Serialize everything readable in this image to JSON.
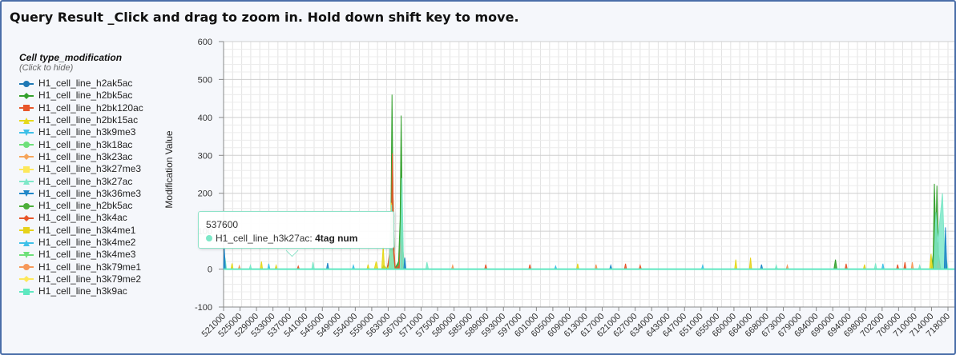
{
  "header": {
    "title": "Query Result _Click and drag to zoom in. Hold down shift key to move."
  },
  "legend": {
    "title": "Cell type_modification",
    "subtitle": "(Click to hide)",
    "items": [
      {
        "label": "H1_cell_line_h2ak5ac",
        "color": "#1f78b4",
        "marker": "circle"
      },
      {
        "label": "H1_cell_line_h2bk5ac",
        "color": "#33a02c",
        "marker": "diamond"
      },
      {
        "label": "H1_cell_line_h2bk120ac",
        "color": "#e8562a",
        "marker": "square"
      },
      {
        "label": "H1_cell_line_h2bk15ac",
        "color": "#e6d91a",
        "marker": "triangle"
      },
      {
        "label": "H1_cell_line_h3k9me3",
        "color": "#3fc0e8",
        "marker": "triangle-down"
      },
      {
        "label": "H1_cell_line_h3k18ac",
        "color": "#6ee07a",
        "marker": "circle"
      },
      {
        "label": "H1_cell_line_h3k23ac",
        "color": "#f6a55a",
        "marker": "diamond"
      },
      {
        "label": "H1_cell_line_h3k27me3",
        "color": "#fde85a",
        "marker": "square"
      },
      {
        "label": "H1_cell_line_h3k27ac",
        "color": "#7ee8c8",
        "marker": "triangle"
      },
      {
        "label": "H1_cell_line_h3k36me3",
        "color": "#1f86c8",
        "marker": "triangle-down"
      },
      {
        "label": "H1_cell_line_h2bk5ac",
        "color": "#4caf3a",
        "marker": "circle"
      },
      {
        "label": "H1_cell_line_h3k4ac",
        "color": "#e8562a",
        "marker": "diamond"
      },
      {
        "label": "H1_cell_line_h3k4me1",
        "color": "#e6d21a",
        "marker": "square"
      },
      {
        "label": "H1_cell_line_h3k4me2",
        "color": "#3fc0e8",
        "marker": "triangle"
      },
      {
        "label": "H1_cell_line_h3k4me3",
        "color": "#6ee07a",
        "marker": "triangle-down"
      },
      {
        "label": "H1_cell_line_h3k79me1",
        "color": "#f6985a",
        "marker": "circle"
      },
      {
        "label": "H1_cell_line_h3k79me2",
        "color": "#fde85a",
        "marker": "diamond"
      },
      {
        "label": "H1_cell_line_h3k9ac",
        "color": "#5ee8c0",
        "marker": "square"
      }
    ]
  },
  "tooltip": {
    "x_value": "537600",
    "series": "H1_cell_line_h3k27ac:",
    "value": "4tag num",
    "color": "#7ee8c8"
  },
  "chart_data": {
    "type": "area",
    "title": "Query Result _Click and drag to zoom in. Hold down shift key to move.",
    "ylabel": "Modification Value",
    "xlabel": "",
    "ylim": [
      -100,
      600
    ],
    "yticks": [
      -100,
      0,
      100,
      200,
      300,
      400,
      500,
      600
    ],
    "xlim": [
      521000,
      718000
    ],
    "xtick_labels": [
      "521000",
      "525000",
      "529000",
      "533000",
      "537000",
      "541000",
      "545000",
      "549000",
      "554000",
      "559000",
      "563000",
      "567000",
      "571000",
      "575000",
      "580000",
      "585000",
      "589000",
      "593000",
      "597000",
      "601000",
      "605000",
      "609000",
      "613000",
      "617000",
      "621000",
      "627000",
      "634000",
      "643000",
      "647000",
      "651000",
      "655000",
      "660000",
      "664000",
      "668000",
      "673000",
      "679000",
      "684000",
      "690000",
      "694000",
      "698000",
      "702000",
      "706000",
      "710000",
      "714000",
      "718000"
    ],
    "grid": true,
    "legend_position": "left",
    "series": [
      {
        "name": "H1_cell_line_h2bk5ac",
        "color": "#33a02c",
        "points": [
          [
            564000,
            0
          ],
          [
            564600,
            10
          ],
          [
            565400,
            0
          ],
          [
            566100,
            30
          ],
          [
            566500,
            120
          ],
          [
            566800,
            460
          ],
          [
            567100,
            200
          ],
          [
            567500,
            0
          ],
          [
            568600,
            20
          ],
          [
            569000,
            130
          ],
          [
            569300,
            405
          ],
          [
            569700,
            60
          ],
          [
            570200,
            0
          ],
          [
            687000,
            0
          ],
          [
            687400,
            25
          ],
          [
            687800,
            0
          ],
          [
            713500,
            0
          ],
          [
            714000,
            40
          ],
          [
            714300,
            225
          ],
          [
            714700,
            80
          ],
          [
            715000,
            220
          ],
          [
            715400,
            40
          ],
          [
            716000,
            0
          ]
        ]
      },
      {
        "name": "H1_cell_line_h2bk120ac",
        "color": "#e8562a",
        "points": [
          [
            565500,
            0
          ],
          [
            566100,
            40
          ],
          [
            566600,
            110
          ],
          [
            566900,
            305
          ],
          [
            567300,
            60
          ],
          [
            567700,
            0
          ],
          [
            568800,
            10
          ],
          [
            569200,
            80
          ],
          [
            569600,
            0
          ],
          [
            573000,
            0
          ],
          [
            604000,
            0
          ],
          [
            604300,
            12
          ],
          [
            604600,
            0
          ],
          [
            630000,
            0
          ],
          [
            630300,
            14
          ],
          [
            630600,
            0
          ],
          [
            706000,
            0
          ],
          [
            706300,
            18
          ],
          [
            706600,
            0
          ],
          [
            715000,
            0
          ],
          [
            715400,
            22
          ],
          [
            715800,
            0
          ]
        ]
      },
      {
        "name": "H1_cell_line_h2bk15ac",
        "color": "#e6d91a",
        "points": [
          [
            523000,
            0
          ],
          [
            523300,
            15
          ],
          [
            523600,
            0
          ],
          [
            531000,
            0
          ],
          [
            531300,
            20
          ],
          [
            531600,
            0
          ],
          [
            562000,
            0
          ],
          [
            562500,
            20
          ],
          [
            563000,
            0
          ],
          [
            564000,
            0
          ],
          [
            564400,
            60
          ],
          [
            564700,
            10
          ],
          [
            565300,
            0
          ],
          [
            566200,
            10
          ],
          [
            566600,
            175
          ],
          [
            566900,
            40
          ],
          [
            567400,
            0
          ],
          [
            660000,
            0
          ],
          [
            660300,
            25
          ],
          [
            660600,
            0
          ],
          [
            713000,
            0
          ],
          [
            713400,
            40
          ],
          [
            713800,
            0
          ]
        ]
      },
      {
        "name": "H1_cell_line_h3k27ac",
        "color": "#7ee8c8",
        "points": [
          [
            521000,
            0
          ],
          [
            521400,
            30
          ],
          [
            521800,
            0
          ],
          [
            528000,
            0
          ],
          [
            528300,
            10
          ],
          [
            528600,
            0
          ],
          [
            545000,
            0
          ],
          [
            545300,
            18
          ],
          [
            545700,
            0
          ],
          [
            566000,
            0
          ],
          [
            566700,
            170
          ],
          [
            567000,
            40
          ],
          [
            567400,
            0
          ],
          [
            569000,
            0
          ],
          [
            569500,
            240
          ],
          [
            569900,
            30
          ],
          [
            570300,
            0
          ],
          [
            576000,
            0
          ],
          [
            576300,
            18
          ],
          [
            576700,
            0
          ],
          [
            671000,
            0
          ],
          [
            671300,
            10
          ],
          [
            671600,
            0
          ],
          [
            698000,
            0
          ],
          [
            698300,
            15
          ],
          [
            698600,
            0
          ],
          [
            710000,
            0
          ],
          [
            710300,
            10
          ],
          [
            710600,
            0
          ],
          [
            714200,
            0
          ],
          [
            714700,
            150
          ],
          [
            715200,
            70
          ],
          [
            716500,
            200
          ],
          [
            717000,
            60
          ],
          [
            718000,
            0
          ]
        ]
      },
      {
        "name": "H1_cell_line_h3k36me3",
        "color": "#1f86c8",
        "points": [
          [
            521000,
            0
          ],
          [
            521200,
            55
          ],
          [
            521500,
            0
          ],
          [
            549000,
            0
          ],
          [
            549300,
            16
          ],
          [
            549600,
            0
          ],
          [
            570000,
            0
          ],
          [
            570300,
            30
          ],
          [
            570600,
            0
          ],
          [
            626000,
            0
          ],
          [
            626300,
            10
          ],
          [
            626600,
            0
          ],
          [
            667000,
            0
          ],
          [
            667300,
            12
          ],
          [
            667600,
            0
          ],
          [
            717000,
            0
          ],
          [
            717300,
            110
          ],
          [
            717700,
            0
          ]
        ]
      },
      {
        "name": "H1_cell_line_h3k4ac",
        "color": "#e8562a",
        "points": [
          [
            541000,
            0
          ],
          [
            541300,
            8
          ],
          [
            541600,
            0
          ],
          [
            592000,
            0
          ],
          [
            592300,
            12
          ],
          [
            592600,
            0
          ],
          [
            634000,
            0
          ],
          [
            634300,
            10
          ],
          [
            634600,
            0
          ],
          [
            690000,
            0
          ],
          [
            690300,
            14
          ],
          [
            690600,
            0
          ],
          [
            704000,
            0
          ],
          [
            704300,
            12
          ],
          [
            704600,
            0
          ]
        ]
      },
      {
        "name": "H1_cell_line_h3k4me1",
        "color": "#e6d21a",
        "points": [
          [
            535000,
            0
          ],
          [
            535300,
            10
          ],
          [
            535600,
            0
          ],
          [
            560000,
            0
          ],
          [
            560300,
            12
          ],
          [
            560600,
            0
          ],
          [
            617000,
            0
          ],
          [
            617300,
            14
          ],
          [
            617600,
            0
          ],
          [
            664000,
            0
          ],
          [
            664300,
            30
          ],
          [
            664600,
            0
          ],
          [
            695000,
            0
          ],
          [
            695300,
            12
          ],
          [
            695600,
            0
          ]
        ]
      },
      {
        "name": "H1_cell_line_h3k4me2",
        "color": "#3fc0e8",
        "points": [
          [
            533000,
            0
          ],
          [
            533300,
            14
          ],
          [
            533600,
            0
          ],
          [
            556000,
            0
          ],
          [
            556300,
            10
          ],
          [
            556600,
            0
          ],
          [
            611000,
            0
          ],
          [
            611300,
            8
          ],
          [
            611600,
            0
          ],
          [
            651000,
            0
          ],
          [
            651300,
            10
          ],
          [
            651600,
            0
          ],
          [
            700000,
            0
          ],
          [
            700300,
            14
          ],
          [
            700600,
            0
          ]
        ]
      },
      {
        "name": "H1_cell_line_h3k79me1",
        "color": "#f6985a",
        "points": [
          [
            525000,
            0
          ],
          [
            525300,
            9
          ],
          [
            525600,
            0
          ],
          [
            583000,
            0
          ],
          [
            583300,
            10
          ],
          [
            583600,
            0
          ],
          [
            622000,
            0
          ],
          [
            622300,
            12
          ],
          [
            622600,
            0
          ],
          [
            674000,
            0
          ],
          [
            674300,
            10
          ],
          [
            674600,
            0
          ],
          [
            708000,
            0
          ],
          [
            708300,
            18
          ],
          [
            708600,
            0
          ]
        ]
      }
    ]
  }
}
